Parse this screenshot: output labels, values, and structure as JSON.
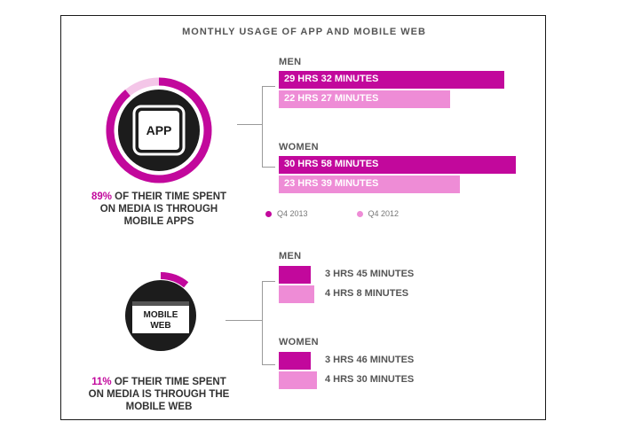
{
  "title": "MONTHLY USAGE OF APP AND MOBILE WEB",
  "colors": {
    "q4_2013": "#c2089c",
    "q4_2012": "#ee8cd6",
    "ring_dark": "#1c1c1c"
  },
  "legend": {
    "q4_2013": "Q4 2013",
    "q4_2012": "Q4 2012"
  },
  "app": {
    "icon_label": "APP",
    "caption_pct": "89%",
    "caption_line1_rest": " OF THEIR TIME SPENT",
    "caption_line2": "ON MEDIA IS THROUGH",
    "caption_line3": "MOBILE APPS",
    "share": 0.89,
    "men_label": "MEN",
    "women_label": "WOMEN"
  },
  "web": {
    "icon_label_1": "MOBILE",
    "icon_label_2": "WEB",
    "caption_pct": "11%",
    "caption_line1_rest": " OF THEIR TIME SPENT",
    "caption_line2": "ON MEDIA IS THROUGH THE",
    "caption_line3": "MOBILE WEB",
    "share": 0.11,
    "men_label": "MEN",
    "women_label": "WOMEN"
  },
  "chart_data": [
    {
      "type": "bar",
      "orientation": "horizontal",
      "unit": "minutes",
      "categories": [
        "MEN",
        "WOMEN"
      ],
      "series": [
        {
          "name": "Q4 2013",
          "values": [
            1772,
            1858
          ],
          "labels": [
            "29 HRS 32 MINUTES",
            "30 HRS 58 MINUTES"
          ]
        },
        {
          "name": "Q4 2012",
          "values": [
            1347,
            1419
          ],
          "labels": [
            "22 HRS 27 MINUTES",
            "23 HRS 39 MINUTES"
          ]
        }
      ]
    },
    {
      "type": "bar",
      "orientation": "horizontal",
      "unit": "minutes",
      "categories": [
        "MEN",
        "WOMEN"
      ],
      "series": [
        {
          "name": "Q4 2013",
          "values": [
            225,
            226
          ],
          "labels": [
            "3 HRS 45 MINUTES",
            "3 HRS 46 MINUTES"
          ]
        },
        {
          "name": "Q4 2012",
          "values": [
            248,
            270
          ],
          "labels": [
            "4 HRS 8 MINUTES",
            "4 HRS 30 MINUTES"
          ]
        }
      ]
    }
  ]
}
